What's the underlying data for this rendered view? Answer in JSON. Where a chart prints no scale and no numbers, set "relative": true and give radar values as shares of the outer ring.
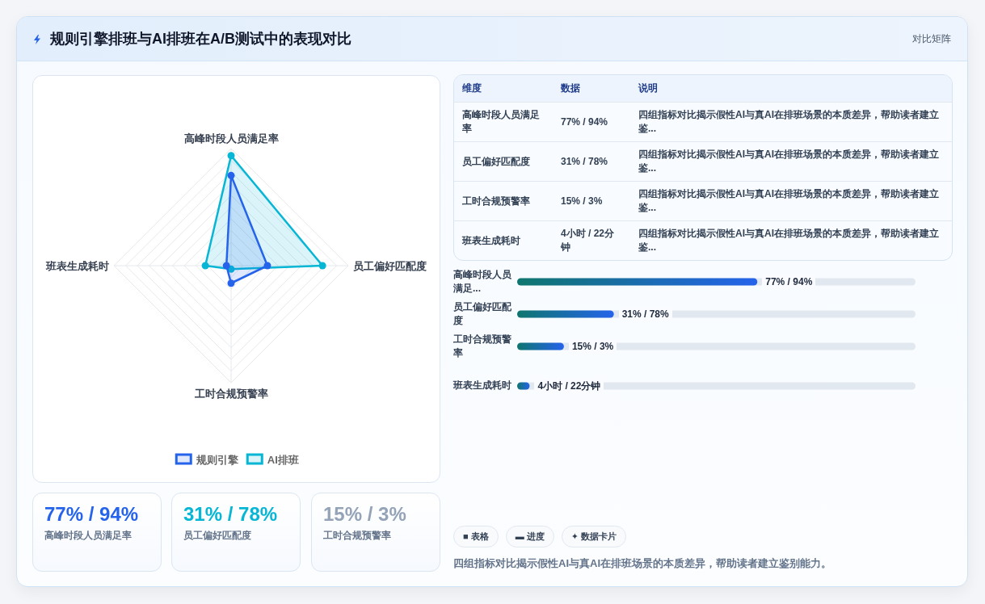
{
  "chart_data": [
    {
      "type": "other",
      "title": "规则引擎排班与AI排班在A/B测试中的表现对比",
      "annotations": [
        "对比矩阵"
      ]
    },
    {
      "type": "radar",
      "relative": true,
      "categories": [
        "高峰时段人员满足率",
        "员工偏好匹配度",
        "工时合规预警率",
        "班表生成耗时"
      ],
      "series": [
        {
          "name": "规则引擎",
          "color": "#2563eb",
          "values": [
            0.77,
            0.31,
            0.15,
            0.04
          ]
        },
        {
          "name": "AI排班",
          "color": "#06b6d4",
          "values": [
            0.94,
            0.78,
            0.03,
            0.22
          ]
        }
      ],
      "legend": "bottom",
      "marker": "circle",
      "grid": true
    },
    {
      "type": "other",
      "annotations": [
        "维度",
        "数据",
        "说明",
        "高峰时段人员满足率",
        "77% / 94%",
        "四组指标对比揭示假性AI与真AI在排班场景的本质差异，帮助读者建立鉴...",
        "员工偏好匹配度",
        "31% / 78%",
        "四组指标对比揭示假性AI与真AI在排班场景的本质差异，帮助读者建立鉴...",
        "工时合规预警率",
        "15% / 3%",
        "四组指标对比揭示假性AI与真AI在排班场景的本质差异，帮助读者建立鉴...",
        "班表生成耗时",
        "4小时 / 22分钟",
        "四组指标对比揭示假性AI与真AI在排班场景的本质差异，帮助读者建立鉴..."
      ]
    },
    {
      "type": "bar",
      "orientation": "horizontal",
      "categories": [
        "高峰时段人员满足...",
        "员工偏好匹配度",
        "工时合规预警率",
        "班表生成耗时"
      ],
      "values": [
        77,
        31,
        15,
        4
      ],
      "tick_labels": "y",
      "value_labels": [
        "77% / 94%",
        "31% / 78%",
        "15% / 3%",
        "4小时 / 22分钟"
      ],
      "color": "#2563eb"
    },
    {
      "type": "other",
      "annotations": [
        "77% / 94%",
        "高峰时段人员满足率",
        "31% / 78%",
        "员工偏好匹配度",
        "15% / 3%",
        "工时合规预警率"
      ],
      "colors": [
        "#2563eb",
        "#06b6d4",
        "#94a3b8"
      ]
    },
    {
      "type": "other",
      "annotations": [
        "■ 表格",
        "▬ 进度",
        "✦ 数据卡片",
        "四组指标对比揭示假性AI与真AI在排班场景的本质差异，帮助读者建立鉴别能力。"
      ]
    }
  ]
}
